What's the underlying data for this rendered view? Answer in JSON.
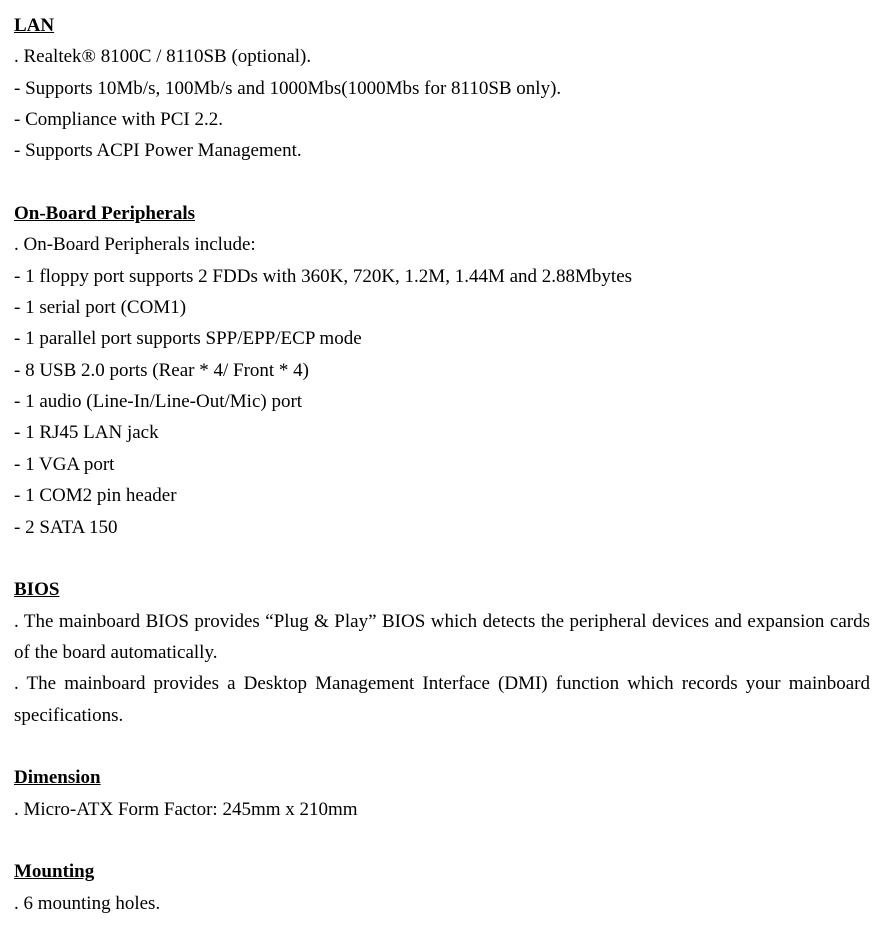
{
  "lan": {
    "heading": "LAN",
    "lines": [
      ". Realtek® 8100C / 8110SB (optional).",
      "- Supports 10Mb/s, 100Mb/s and 1000Mbs(1000Mbs for 8110SB only).",
      "- Compliance with PCI 2.2.",
      "- Supports ACPI Power Management."
    ]
  },
  "peripherals": {
    "heading": "On-Board Peripherals",
    "lines": [
      ". On-Board Peripherals include:",
      "- 1 floppy port supports 2 FDDs with 360K, 720K, 1.2M, 1.44M and 2.88Mbytes",
      "- 1 serial port (COM1)",
      "- 1 parallel port supports SPP/EPP/ECP mode",
      "- 8 USB 2.0 ports (Rear * 4/ Front * 4)",
      "- 1 audio (Line-In/Line-Out/Mic) port",
      "- 1 RJ45 LAN jack",
      "- 1 VGA port",
      "- 1 COM2 pin header",
      "- 2 SATA 150"
    ]
  },
  "bios": {
    "heading": "BIOS",
    "lines": [
      ". The mainboard BIOS provides “Plug & Play” BIOS which detects the peripheral devices and expansion cards of the board automatically.",
      ". The mainboard provides a Desktop Management Interface (DMI) function which records your mainboard specifications."
    ]
  },
  "dimension": {
    "heading": "Dimension",
    "lines": [
      ". Micro-ATX Form Factor: 245mm x 210mm"
    ]
  },
  "mounting": {
    "heading": "Mounting",
    "lines": [
      ". 6 mounting holes."
    ]
  }
}
